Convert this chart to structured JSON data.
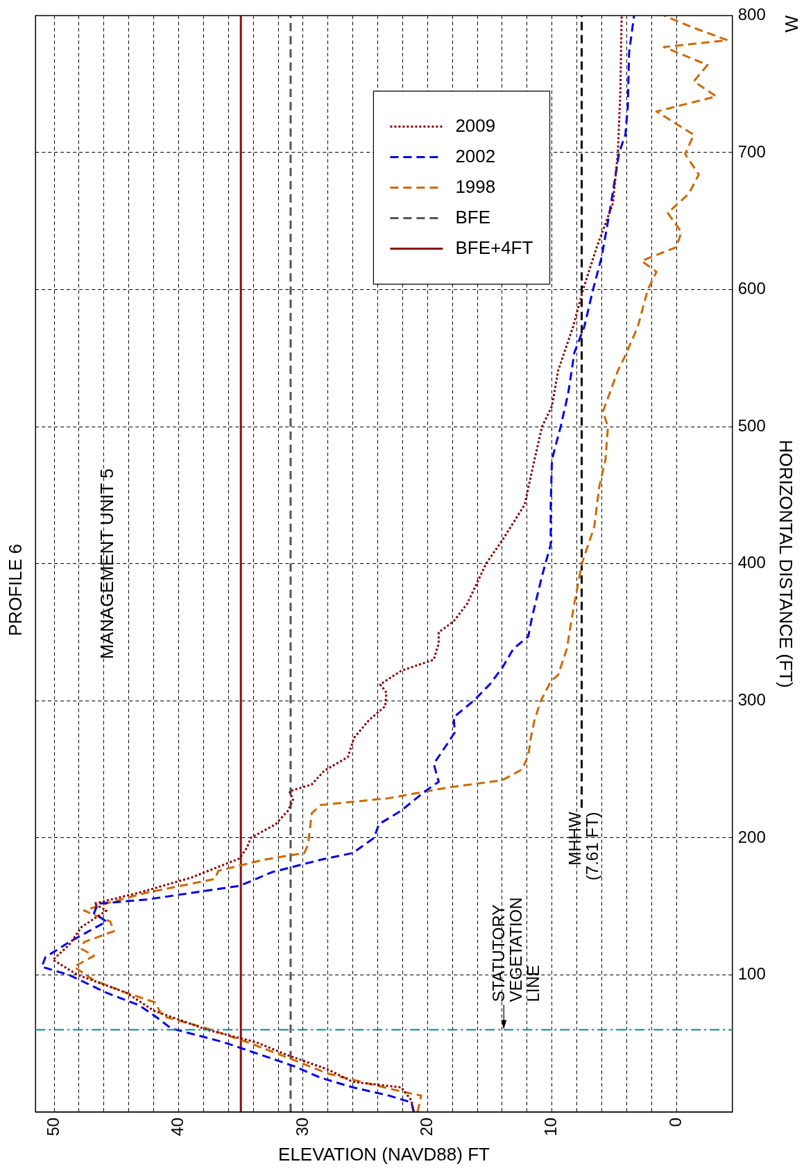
{
  "chart_data": {
    "type": "line",
    "title": "PROFILE 6",
    "xlabel": "ELEVATION (NAVD88) FT",
    "ylabel": "HORIZONTAL DISTANCE (FT)",
    "xlim": [
      51.5,
      -4.5
    ],
    "xticks": [
      0,
      {
        "value": 2,
        "label": null
      },
      {
        "value": 4,
        "label": null
      },
      {
        "value": 6,
        "label": null
      },
      {
        "value": 8,
        "label": null
      },
      10,
      {
        "value": 12,
        "label": null
      },
      {
        "value": 14,
        "label": null
      },
      {
        "value": 16,
        "label": null
      },
      {
        "value": 18,
        "label": null
      },
      20,
      {
        "value": 22,
        "label": null
      },
      {
        "value": 24,
        "label": null
      },
      {
        "value": 26,
        "label": null
      },
      {
        "value": 28,
        "label": null
      },
      30,
      {
        "value": 32,
        "label": null
      },
      {
        "value": 34,
        "label": null
      },
      {
        "value": 36,
        "label": null
      },
      {
        "value": 38,
        "label": null
      },
      40,
      {
        "value": 42,
        "label": null
      },
      {
        "value": 44,
        "label": null
      },
      {
        "value": 46,
        "label": null
      },
      {
        "value": 48,
        "label": null
      },
      50
    ],
    "ylim": [
      0,
      800
    ],
    "yticks": [
      {
        "value": 0,
        "label": null
      },
      100,
      200,
      300,
      400,
      500,
      600,
      700,
      800
    ],
    "grid": true,
    "legend": "top right",
    "marker": "none",
    "series": [
      {
        "name": "2009",
        "color": "#8b0000",
        "line_style": "dotted",
        "values": [
          0,
          8.5,
          18,
          22,
          31,
          41,
          51,
          60,
          74,
          87,
          100,
          111,
          122,
          135,
          147,
          152,
          160,
          171,
          185,
          193,
          200,
          210,
          220,
          228,
          234,
          239,
          249,
          259,
          273,
          286,
          296,
          306,
          312,
          322,
          330,
          342,
          350,
          358,
          371,
          400,
          417,
          443,
          476,
          500,
          515,
          541,
          573,
          600,
          631,
          663,
          700,
          745,
          800
        ],
        "x": [
          21.1,
          21.3,
          22.1,
          26.0,
          28.0,
          31.1,
          33.8,
          37.7,
          42.0,
          44.2,
          48.1,
          50.1,
          48.8,
          47.8,
          45.8,
          46.8,
          43.2,
          39.0,
          35.1,
          34.5,
          34.2,
          32.2,
          31.2,
          30.8,
          31.1,
          29.3,
          28.3,
          26.4,
          25.9,
          24.7,
          23.4,
          23.3,
          23.8,
          22.1,
          19.5,
          19.1,
          19.1,
          17.9,
          16.8,
          15.3,
          14.0,
          12.2,
          11.4,
          10.8,
          10.0,
          9.5,
          8.3,
          7.5,
          6.4,
          5.1,
          4.7,
          4.5,
          4.4
        ]
      },
      {
        "name": "2002",
        "color": "#0000ee",
        "line_style": "dashed",
        "values": [
          0,
          7,
          12,
          18,
          25,
          33,
          39,
          51,
          61,
          70,
          78,
          87,
          100,
          106,
          113,
          124,
          139,
          145,
          152,
          155,
          165,
          175,
          184,
          189,
          200,
          210,
          220,
          234,
          241,
          254,
          262,
          277,
          288,
          300,
          312,
          324,
          338,
          347,
          361,
          391,
          414,
          443,
          476,
          500,
          524,
          554,
          573,
          600,
          624,
          660,
          700,
          713,
          734,
          773,
          800
        ],
        "x": [
          21.1,
          21.3,
          23.1,
          26.0,
          28.6,
          30.6,
          32.5,
          36.4,
          40.6,
          41.9,
          43.2,
          45.8,
          48.8,
          51.0,
          50.7,
          48.8,
          45.8,
          46.8,
          46.5,
          42.6,
          35.1,
          32.5,
          28.6,
          26.0,
          24.3,
          23.9,
          22.1,
          20.2,
          19.1,
          19.5,
          18.9,
          17.8,
          17.9,
          16.3,
          15.0,
          14.0,
          13.1,
          11.9,
          11.6,
          10.8,
          10.1,
          10.1,
          10.0,
          9.3,
          8.7,
          8.2,
          7.4,
          6.7,
          6.0,
          5.3,
          4.6,
          4.1,
          3.9,
          3.8,
          3.4
        ]
      },
      {
        "name": "1998",
        "color": "#cc6a00",
        "line_style": "dashed",
        "values": [
          0,
          12,
          15,
          20,
          28,
          41,
          51,
          61,
          70,
          80,
          87,
          96,
          106,
          114,
          119,
          124,
          132,
          139,
          147,
          153,
          160,
          170,
          176,
          184,
          189,
          195,
          218,
          224,
          229,
          237,
          242,
          250,
          260,
          273,
          286,
          300,
          314,
          319,
          338,
          355,
          371,
          400,
          427,
          456,
          476,
          500,
          511,
          541,
          550,
          573,
          600,
          613,
          621,
          631,
          642,
          656,
          670,
          684,
          699,
          713,
          730,
          741,
          752,
          764,
          777,
          782,
          791,
          800
        ],
        "x": [
          20.8,
          20.5,
          22.1,
          24.4,
          28.0,
          31.6,
          34.5,
          37.7,
          41.3,
          41.9,
          44.2,
          46.8,
          48.4,
          46.8,
          47.8,
          47.6,
          45.2,
          45.5,
          47.6,
          45.5,
          42.6,
          37.1,
          36.8,
          33.2,
          29.9,
          29.6,
          29.3,
          28.6,
          23.1,
          18.2,
          14.0,
          12.4,
          11.9,
          11.7,
          11.4,
          10.9,
          10.1,
          9.5,
          8.8,
          8.5,
          8.2,
          7.6,
          6.6,
          6.2,
          5.7,
          5.5,
          5.9,
          4.7,
          4.2,
          3.1,
          2.3,
          1.6,
          2.8,
          0.0,
          -0.4,
          0.7,
          -1.0,
          -1.8,
          -0.7,
          -1.4,
          1.6,
          -3.2,
          -1.4,
          -2.5,
          1.0,
          -4.1,
          -1.4,
          1.0
        ]
      },
      {
        "name": "BFE",
        "color": "#555555",
        "line_style": "dashed",
        "x": [
          31,
          31
        ],
        "values": [
          0,
          800
        ]
      },
      {
        "name": "BFE+4FT",
        "color": "#8b1010",
        "line_style": "solid",
        "x": [
          35,
          35
        ],
        "values": [
          0,
          800
        ]
      },
      {
        "color": "#000000",
        "line_style": "dashed",
        "x": [
          7.61,
          7.61
        ],
        "values": [
          222,
          800
        ]
      }
    ],
    "ref_lines": [
      {
        "axis": "y",
        "value": 60,
        "label": "STATUTORY\nVEGETATION\nLINE",
        "color": "#008b8b",
        "line_style": "dashed"
      }
    ],
    "annotations": [
      "MANAGEMENT UNIT 5",
      {
        "text": "MHHW\n(7.61 FT)",
        "x": 7.61,
        "y": 222
      },
      "W"
    ]
  }
}
